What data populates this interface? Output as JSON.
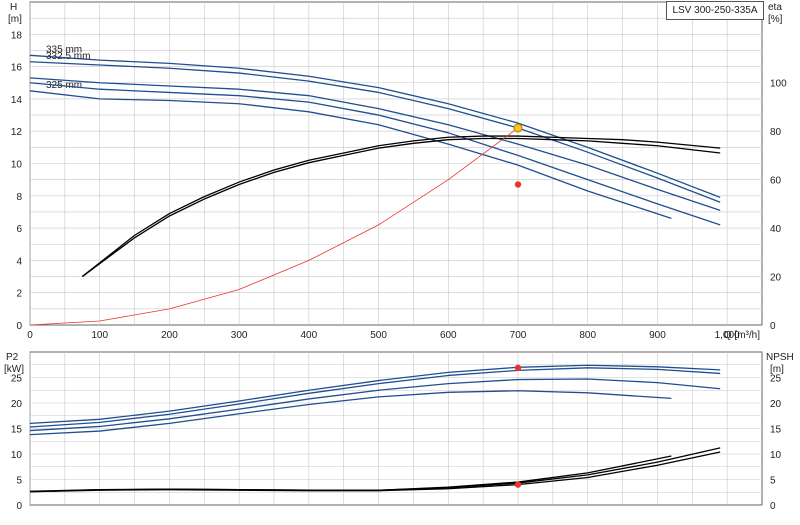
{
  "title": "LSV 300-250-335A",
  "colors": {
    "blue": "#1f4f8f",
    "black": "#000000",
    "red": "#e8352a",
    "duty": "#f5c518",
    "grid": "#c8c8c8"
  },
  "chart_data": [
    {
      "id": "performance",
      "type": "line",
      "ylabel_left": "H",
      "ylabel_left_unit": "[m]",
      "ylabel_right": "eta",
      "ylabel_right_unit": "[%]",
      "xlabel": "Q  [m³/h]",
      "xlim": [
        0,
        1050
      ],
      "ylim": [
        0,
        20
      ],
      "eta_lim": [
        0,
        133.33
      ],
      "x_ticks": [
        "0",
        "100",
        "200",
        "300",
        "400",
        "500",
        "600",
        "700",
        "800",
        "900",
        "1,000"
      ],
      "y_ticks": [
        "0",
        "2",
        "4",
        "6",
        "8",
        "10",
        "12",
        "14",
        "16",
        "18"
      ],
      "eta_ticks": [
        "0",
        "20",
        "40",
        "60",
        "80",
        "100"
      ],
      "series": [
        {
          "name": "335 mm",
          "axis": "left",
          "color": "blue",
          "x": [
            0,
            100,
            200,
            300,
            400,
            500,
            600,
            700,
            800,
            900,
            990
          ],
          "y": [
            16.7,
            16.4,
            16.2,
            15.9,
            15.4,
            14.7,
            13.7,
            12.5,
            11.0,
            9.4,
            7.9
          ]
        },
        {
          "name": "332.5 mm",
          "axis": "left",
          "color": "blue",
          "x": [
            0,
            100,
            200,
            300,
            400,
            500,
            600,
            700,
            800,
            900,
            990
          ],
          "y": [
            16.3,
            16.1,
            15.9,
            15.6,
            15.1,
            14.4,
            13.4,
            12.2,
            10.7,
            9.1,
            7.6
          ]
        },
        {
          "name": "",
          "axis": "left",
          "color": "blue",
          "x": [
            0,
            100,
            200,
            300,
            400,
            500,
            600,
            700,
            800,
            900,
            990
          ],
          "y": [
            15.3,
            15.0,
            14.8,
            14.6,
            14.2,
            13.4,
            12.4,
            11.2,
            9.9,
            8.4,
            7.1
          ]
        },
        {
          "name": "325 mm",
          "axis": "left",
          "color": "blue",
          "x": [
            0,
            100,
            200,
            300,
            400,
            500,
            600,
            700,
            800,
            920
          ],
          "y": [
            14.5,
            14.0,
            13.9,
            13.7,
            13.2,
            12.4,
            11.2,
            9.9,
            8.3,
            6.6
          ]
        },
        {
          "name": "",
          "axis": "left",
          "color": "blue",
          "x": [
            0,
            100,
            200,
            300,
            400,
            500,
            600,
            700,
            800,
            900,
            990
          ],
          "y": [
            15.0,
            14.6,
            14.4,
            14.2,
            13.8,
            13.0,
            11.9,
            10.5,
            9.0,
            7.5,
            6.2
          ]
        },
        {
          "name": "",
          "axis": "right",
          "color": "black",
          "x": [
            75,
            150,
            200,
            250,
            300,
            350,
            400,
            450,
            500,
            550,
            600,
            650,
            700,
            750,
            800,
            850,
            900,
            990
          ],
          "y": [
            20,
            36,
            45,
            52,
            58,
            63,
            67,
            70,
            73,
            75,
            76.5,
            77,
            77,
            76.5,
            76,
            75,
            74,
            71
          ]
        },
        {
          "name": "",
          "axis": "right",
          "color": "black",
          "x": [
            75,
            150,
            200,
            250,
            300,
            350,
            400,
            450,
            500,
            550,
            600,
            650,
            700,
            750,
            800,
            850,
            900,
            990
          ],
          "y": [
            20,
            37,
            46,
            53,
            59,
            64,
            68,
            71,
            74,
            76,
            77.5,
            78,
            78,
            77.5,
            77,
            76.5,
            75.5,
            73
          ]
        },
        {
          "name": "",
          "axis": "left",
          "color": "red",
          "x": [
            0,
            100,
            200,
            300,
            400,
            500,
            600,
            700
          ],
          "y": [
            0,
            0.25,
            1.0,
            2.2,
            4.0,
            6.2,
            9.0,
            12.2
          ]
        }
      ],
      "points": [
        {
          "x": 700,
          "y": 12.2,
          "axis": "left",
          "color": "duty"
        },
        {
          "x": 700,
          "y": 8.7,
          "axis": "left",
          "color": "red"
        }
      ]
    },
    {
      "id": "power_npsh",
      "type": "line",
      "ylabel_left": "P2",
      "ylabel_left_unit": "[kW]",
      "ylabel_right": "NPSH",
      "ylabel_right_unit": "[m]",
      "xlim": [
        0,
        1050
      ],
      "ylim": [
        0,
        30
      ],
      "y_ticks": [
        "0",
        "5",
        "10",
        "15",
        "20",
        "25"
      ],
      "npsh_ticks": [
        "0",
        "5",
        "10",
        "15",
        "20",
        "25"
      ],
      "series": [
        {
          "name": "",
          "axis": "left",
          "color": "blue",
          "x": [
            0,
            100,
            200,
            300,
            400,
            500,
            600,
            700,
            800,
            900,
            990
          ],
          "y": [
            16.0,
            16.8,
            18.4,
            20.4,
            22.5,
            24.4,
            26.0,
            27.0,
            27.4,
            27.1,
            26.5
          ]
        },
        {
          "name": "",
          "axis": "left",
          "color": "blue",
          "x": [
            0,
            100,
            200,
            300,
            400,
            500,
            600,
            700,
            800,
            900,
            990
          ],
          "y": [
            15.3,
            16.2,
            17.8,
            19.8,
            21.9,
            23.8,
            25.4,
            26.4,
            26.9,
            26.6,
            25.8
          ]
        },
        {
          "name": "",
          "axis": "left",
          "color": "blue",
          "x": [
            0,
            100,
            200,
            300,
            400,
            500,
            600,
            700,
            800,
            900,
            990
          ],
          "y": [
            14.6,
            15.4,
            16.9,
            18.8,
            20.8,
            22.5,
            23.8,
            24.6,
            24.7,
            24.0,
            22.8
          ]
        },
        {
          "name": "",
          "axis": "left",
          "color": "blue",
          "x": [
            0,
            100,
            200,
            300,
            400,
            500,
            600,
            700,
            800,
            920
          ],
          "y": [
            13.8,
            14.5,
            16.0,
            17.9,
            19.7,
            21.2,
            22.1,
            22.4,
            22.0,
            20.9
          ]
        },
        {
          "name": "",
          "axis": "right",
          "color": "black",
          "x": [
            0,
            100,
            200,
            300,
            400,
            500,
            600,
            700,
            800,
            900,
            990
          ],
          "y": [
            2.6,
            2.9,
            3.0,
            2.9,
            2.8,
            2.8,
            3.2,
            4.0,
            5.4,
            7.8,
            10.4
          ]
        },
        {
          "name": "",
          "axis": "right",
          "color": "black",
          "x": [
            0,
            100,
            200,
            300,
            400,
            500,
            600,
            700,
            800,
            900,
            990
          ],
          "y": [
            2.6,
            3.0,
            3.1,
            3.0,
            2.9,
            2.9,
            3.4,
            4.3,
            5.9,
            8.4,
            11.2
          ]
        },
        {
          "name": "",
          "axis": "right",
          "color": "black",
          "x": [
            0,
            100,
            200,
            300,
            400,
            500,
            600,
            700,
            800,
            920
          ],
          "y": [
            2.7,
            3.0,
            3.1,
            3.0,
            2.9,
            2.9,
            3.5,
            4.5,
            6.3,
            9.6
          ]
        }
      ],
      "points": [
        {
          "x": 700,
          "y": 26.9,
          "axis": "left",
          "color": "red"
        },
        {
          "x": 700,
          "y": 4.0,
          "axis": "right",
          "color": "red"
        }
      ]
    }
  ]
}
